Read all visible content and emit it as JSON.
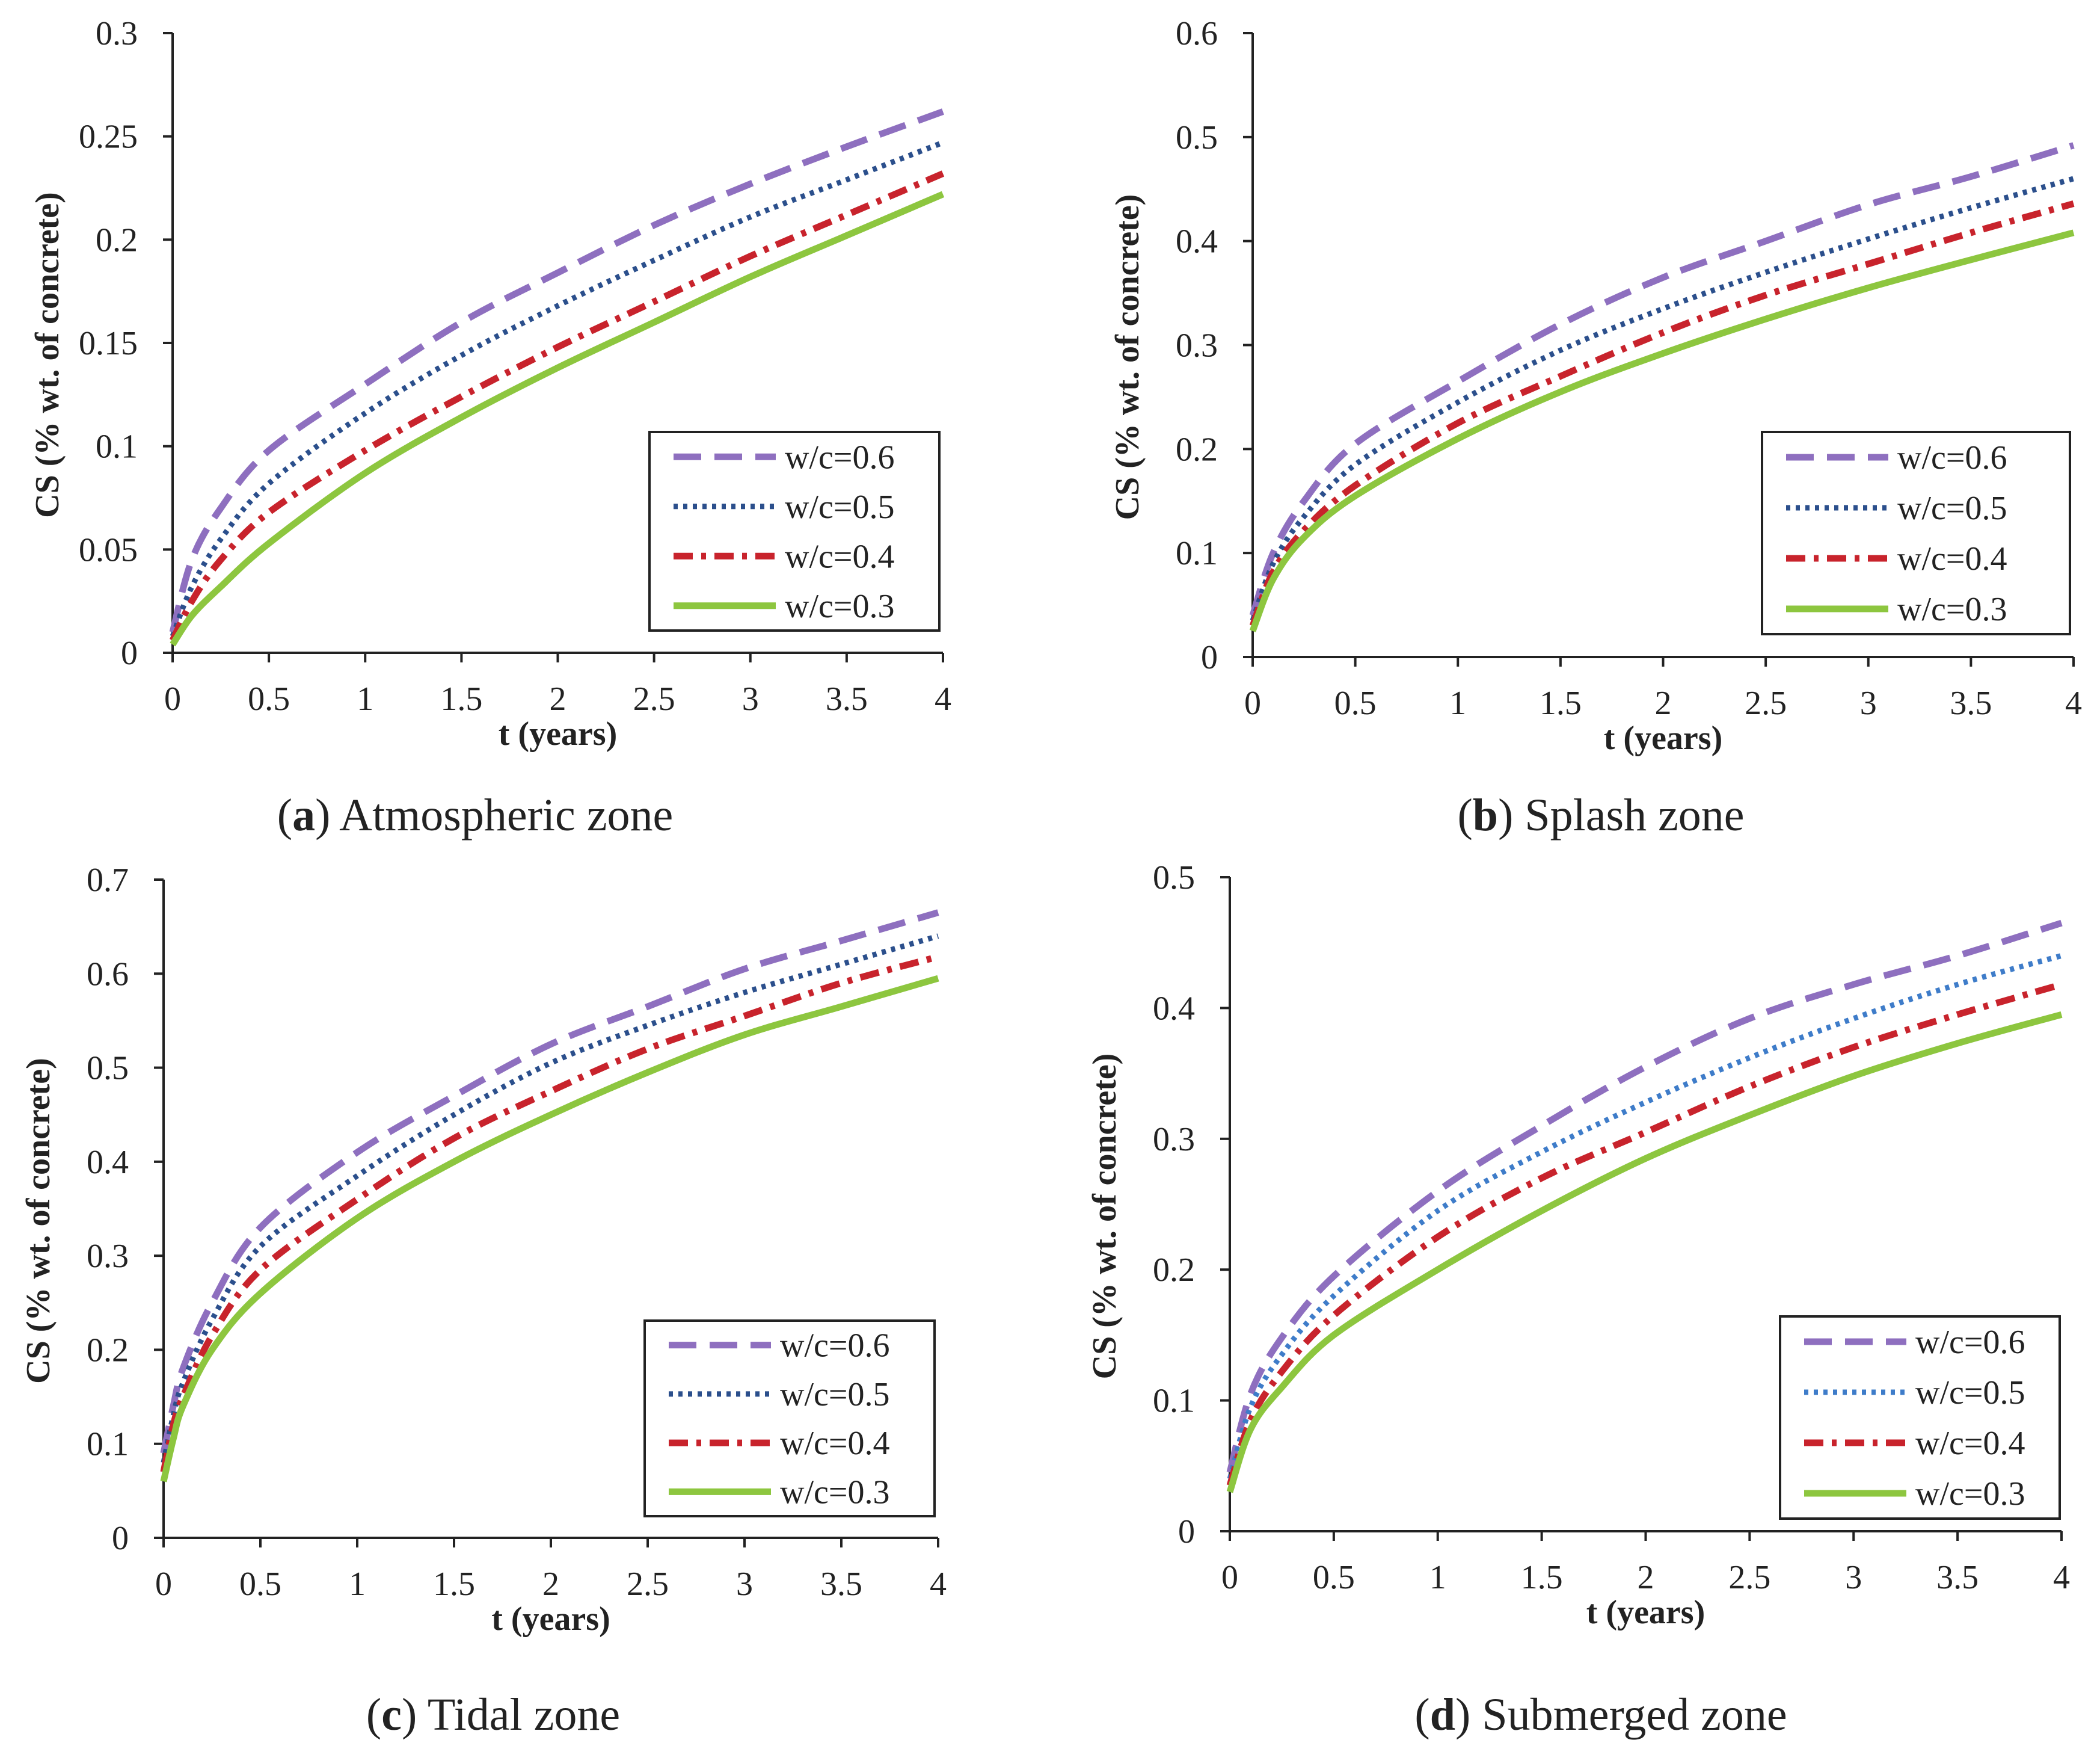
{
  "chart_data": [
    {
      "type": "line",
      "caption_letter": "a",
      "caption_text": "Atmospheric zone",
      "xlabel": "t (years)",
      "ylabel": "CS (% wt. of concrete)",
      "xlim": [
        0,
        4
      ],
      "ylim": [
        0,
        0.3
      ],
      "xticks": [
        0,
        0.5,
        1,
        1.5,
        2,
        2.5,
        3,
        3.5,
        4
      ],
      "yticks": [
        0,
        0.05,
        0.1,
        0.15,
        0.2,
        0.25,
        0.3
      ],
      "grid": false,
      "legend_position": "bottom-right",
      "x": [
        0,
        0.1,
        0.25,
        0.5,
        1,
        1.5,
        2,
        2.5,
        3,
        3.5,
        4
      ],
      "series": [
        {
          "name": "w/c=0.6",
          "style": "dashed",
          "color": "#8E6FBF",
          "values": [
            0.01,
            0.045,
            0.07,
            0.098,
            0.13,
            0.16,
            0.184,
            0.207,
            0.227,
            0.245,
            0.262
          ]
        },
        {
          "name": "w/c=0.5",
          "style": "dotted",
          "color": "#2B4F8C",
          "values": [
            0.008,
            0.032,
            0.055,
            0.082,
            0.116,
            0.144,
            0.168,
            0.19,
            0.211,
            0.229,
            0.247
          ]
        },
        {
          "name": "w/c=0.4",
          "style": "dashdot",
          "color": "#C8232C",
          "values": [
            0.006,
            0.025,
            0.045,
            0.068,
            0.098,
            0.124,
            0.148,
            0.17,
            0.192,
            0.212,
            0.232
          ]
        },
        {
          "name": "w/c=0.3",
          "style": "solid",
          "color": "#8DC63F",
          "values": [
            0.004,
            0.018,
            0.032,
            0.053,
            0.087,
            0.114,
            0.138,
            0.16,
            0.182,
            0.202,
            0.222
          ]
        }
      ]
    },
    {
      "type": "line",
      "caption_letter": "b",
      "caption_text": "Splash zone",
      "xlabel": "t (years)",
      "ylabel": "CS (% wt. of concrete)",
      "xlim": [
        0,
        4
      ],
      "ylim": [
        0,
        0.6
      ],
      "xticks": [
        0,
        0.5,
        1,
        1.5,
        2,
        2.5,
        3,
        3.5,
        4
      ],
      "yticks": [
        0,
        0.1,
        0.2,
        0.3,
        0.4,
        0.5,
        0.6
      ],
      "grid": false,
      "legend_position": "bottom-right",
      "x": [
        0,
        0.1,
        0.25,
        0.5,
        1,
        1.5,
        2,
        2.5,
        3,
        3.5,
        4
      ],
      "series": [
        {
          "name": "w/c=0.6",
          "style": "dashed",
          "color": "#8E6FBF",
          "values": [
            0.04,
            0.1,
            0.15,
            0.205,
            0.265,
            0.32,
            0.365,
            0.4,
            0.435,
            0.462,
            0.492
          ]
        },
        {
          "name": "w/c=0.5",
          "style": "dotted",
          "color": "#2B4F8C",
          "values": [
            0.035,
            0.09,
            0.135,
            0.185,
            0.245,
            0.295,
            0.335,
            0.37,
            0.402,
            0.432,
            0.46
          ]
        },
        {
          "name": "w/c=0.4",
          "style": "dashdot",
          "color": "#C8232C",
          "values": [
            0.03,
            0.082,
            0.122,
            0.165,
            0.225,
            0.27,
            0.312,
            0.348,
            0.378,
            0.408,
            0.436
          ]
        },
        {
          "name": "w/c=0.3",
          "style": "solid",
          "color": "#8DC63F",
          "values": [
            0.025,
            0.075,
            0.115,
            0.155,
            0.21,
            0.255,
            0.292,
            0.325,
            0.355,
            0.382,
            0.408
          ]
        }
      ]
    },
    {
      "type": "line",
      "caption_letter": "c",
      "caption_text": "Tidal zone",
      "xlabel": "t (years)",
      "ylabel": "CS (% wt. of concrete)",
      "xlim": [
        0,
        4
      ],
      "ylim": [
        0,
        0.7
      ],
      "xticks": [
        0,
        0.5,
        1,
        1.5,
        2,
        2.5,
        3,
        3.5,
        4
      ],
      "yticks": [
        0,
        0.1,
        0.2,
        0.3,
        0.4,
        0.5,
        0.6,
        0.7
      ],
      "grid": false,
      "legend_position": "bottom-right",
      "x": [
        0,
        0.05,
        0.1,
        0.25,
        0.5,
        1,
        1.5,
        2,
        2.5,
        3,
        3.5,
        4
      ],
      "series": [
        {
          "name": "w/c=0.6",
          "style": "dashed",
          "color": "#8E6FBF",
          "values": [
            0.09,
            0.14,
            0.18,
            0.25,
            0.33,
            0.41,
            0.47,
            0.525,
            0.565,
            0.605,
            0.635,
            0.665
          ]
        },
        {
          "name": "w/c=0.5",
          "style": "dotted",
          "color": "#2B4F8C",
          "values": [
            0.08,
            0.13,
            0.165,
            0.232,
            0.31,
            0.385,
            0.45,
            0.505,
            0.545,
            0.58,
            0.61,
            0.64
          ]
        },
        {
          "name": "w/c=0.4",
          "style": "dashdot",
          "color": "#C8232C",
          "values": [
            0.07,
            0.12,
            0.15,
            0.215,
            0.285,
            0.36,
            0.425,
            0.475,
            0.52,
            0.555,
            0.59,
            0.618
          ]
        },
        {
          "name": "w/c=0.3",
          "style": "solid",
          "color": "#8DC63F",
          "values": [
            0.06,
            0.105,
            0.14,
            0.2,
            0.26,
            0.34,
            0.4,
            0.45,
            0.495,
            0.535,
            0.565,
            0.595
          ]
        }
      ]
    },
    {
      "type": "line",
      "caption_letter": "d",
      "caption_text": "Submerged zone",
      "xlabel": "t (years)",
      "ylabel": "CS (% wt. of concrete)",
      "xlim": [
        0,
        4
      ],
      "ylim": [
        0,
        0.5
      ],
      "xticks": [
        0,
        0.5,
        1,
        1.5,
        2,
        2.5,
        3,
        3.5,
        4
      ],
      "yticks": [
        0,
        0.1,
        0.2,
        0.3,
        0.4,
        0.5
      ],
      "grid": false,
      "legend_position": "bottom-right",
      "x": [
        0,
        0.1,
        0.25,
        0.5,
        1,
        1.5,
        2,
        2.5,
        3,
        3.5,
        4
      ],
      "series": [
        {
          "name": "w/c=0.6",
          "style": "dashed",
          "color": "#8E6FBF",
          "values": [
            0.045,
            0.105,
            0.148,
            0.195,
            0.26,
            0.31,
            0.355,
            0.392,
            0.418,
            0.44,
            0.465
          ]
        },
        {
          "name": "w/c=0.5",
          "style": "dotted",
          "color": "#3E7CC9",
          "values": [
            0.04,
            0.095,
            0.135,
            0.18,
            0.245,
            0.29,
            0.328,
            0.362,
            0.392,
            0.418,
            0.44
          ]
        },
        {
          "name": "w/c=0.4",
          "style": "dashdot",
          "color": "#C8232C",
          "values": [
            0.035,
            0.085,
            0.122,
            0.165,
            0.225,
            0.27,
            0.305,
            0.34,
            0.37,
            0.395,
            0.418
          ]
        },
        {
          "name": "w/c=0.3",
          "style": "solid",
          "color": "#8DC63F",
          "values": [
            0.03,
            0.078,
            0.11,
            0.15,
            0.2,
            0.245,
            0.285,
            0.318,
            0.348,
            0.373,
            0.395
          ]
        }
      ]
    }
  ]
}
